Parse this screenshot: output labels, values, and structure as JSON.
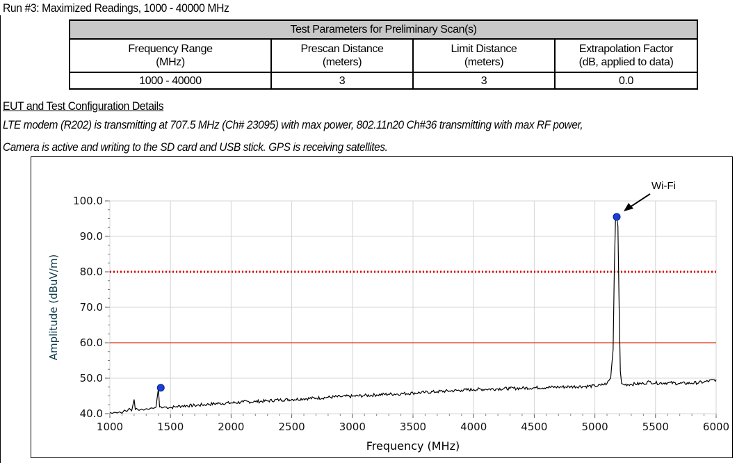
{
  "run_title": "Run #3:  Maximized Readings, 1000 - 40000 MHz",
  "params_table": {
    "header": "Test Parameters for Preliminary Scan(s)",
    "columns": [
      {
        "line1": "Frequency Range",
        "line2": "(MHz)",
        "value": "1000 - 40000"
      },
      {
        "line1": "Prescan Distance",
        "line2": "(meters)",
        "value": "3"
      },
      {
        "line1": "Limit Distance",
        "line2": "(meters)",
        "value": "3"
      },
      {
        "line1": "Extrapolation Factor",
        "line2": "(dB, applied to data)",
        "value": "0.0"
      }
    ]
  },
  "eut_heading": "EUT and Test Configuration Details",
  "description": {
    "line1": "LTE modem (R202) is transmitting at  707.5 MHz (Ch# 23095) with max power, 802.11n20 Ch#36 transmitting with max RF power,",
    "line2": "Camera is active and writing to the SD card and USB stick. GPS is receiving satellites."
  },
  "chart_data": {
    "type": "line",
    "xlabel": "Frequency (MHz)",
    "ylabel": "Amplitude (dBuV/m)",
    "xlim": [
      1000,
      6000
    ],
    "ylim": [
      40,
      100
    ],
    "x_ticks": [
      "1000",
      "1500",
      "2000",
      "2500",
      "3000",
      "3500",
      "4000",
      "4500",
      "5000",
      "5500",
      "6000"
    ],
    "y_ticks": [
      "40.0",
      "50.0",
      "60.0",
      "70.0",
      "80.0",
      "90.0",
      "100.0"
    ],
    "grid": true,
    "limit_lines": [
      {
        "value": 80,
        "style": "dotted",
        "color": "#e00000"
      },
      {
        "value": 60,
        "style": "solid",
        "color": "#e03010"
      }
    ],
    "series": [
      {
        "color": "#000000",
        "x": [
          1000,
          1020,
          1040,
          1060,
          1080,
          1100,
          1120,
          1140,
          1160,
          1180,
          1200,
          1210,
          1220,
          1240,
          1260,
          1280,
          1300,
          1320,
          1340,
          1360,
          1380,
          1400,
          1410,
          1420,
          1430,
          1450,
          1500,
          1550,
          1600,
          1700,
          1800,
          1900,
          2000,
          2100,
          2200,
          2300,
          2400,
          2500,
          2600,
          2700,
          2800,
          2900,
          3000,
          3100,
          3200,
          3300,
          3400,
          3500,
          3600,
          3700,
          3800,
          3900,
          4000,
          4100,
          4200,
          4300,
          4400,
          4500,
          4600,
          4700,
          4800,
          4900,
          5000,
          5050,
          5100,
          5130,
          5150,
          5160,
          5170,
          5180,
          5190,
          5200,
          5210,
          5220,
          5240,
          5300,
          5400,
          5450,
          5500,
          5600,
          5700,
          5800,
          5900,
          6000
        ],
        "y": [
          40.3,
          40.1,
          40.4,
          40.2,
          40.5,
          40.1,
          41.0,
          40.6,
          41.5,
          40.8,
          44.0,
          41.2,
          41.5,
          40.9,
          41.3,
          41.0,
          41.4,
          41.2,
          41.6,
          41.5,
          41.8,
          47.0,
          41.9,
          42.0,
          41.6,
          41.9,
          41.7,
          42.0,
          42.2,
          42.3,
          42.6,
          42.9,
          43.0,
          43.3,
          43.4,
          43.6,
          43.9,
          44.0,
          44.2,
          44.4,
          44.6,
          44.8,
          44.9,
          45.1,
          45.3,
          45.5,
          45.6,
          45.8,
          46.0,
          46.2,
          46.4,
          46.6,
          46.8,
          46.9,
          47.0,
          47.1,
          47.2,
          47.3,
          47.4,
          47.5,
          47.6,
          47.7,
          47.8,
          48.0,
          48.5,
          50.0,
          58.0,
          80.0,
          94.5,
          95.2,
          93.0,
          70.0,
          52.0,
          48.5,
          48.2,
          48.3,
          48.5,
          49.0,
          48.6,
          48.7,
          48.5,
          48.6,
          48.9,
          49.6
        ]
      }
    ],
    "markers": [
      {
        "x": 1420,
        "y": 47.3,
        "color": "#1a3fd6"
      },
      {
        "x": 5180,
        "y": 95.5,
        "color": "#1a3fd6"
      }
    ],
    "annotations": [
      {
        "text": "Wi-Fi",
        "x": 5180,
        "y": 95.5
      }
    ]
  }
}
